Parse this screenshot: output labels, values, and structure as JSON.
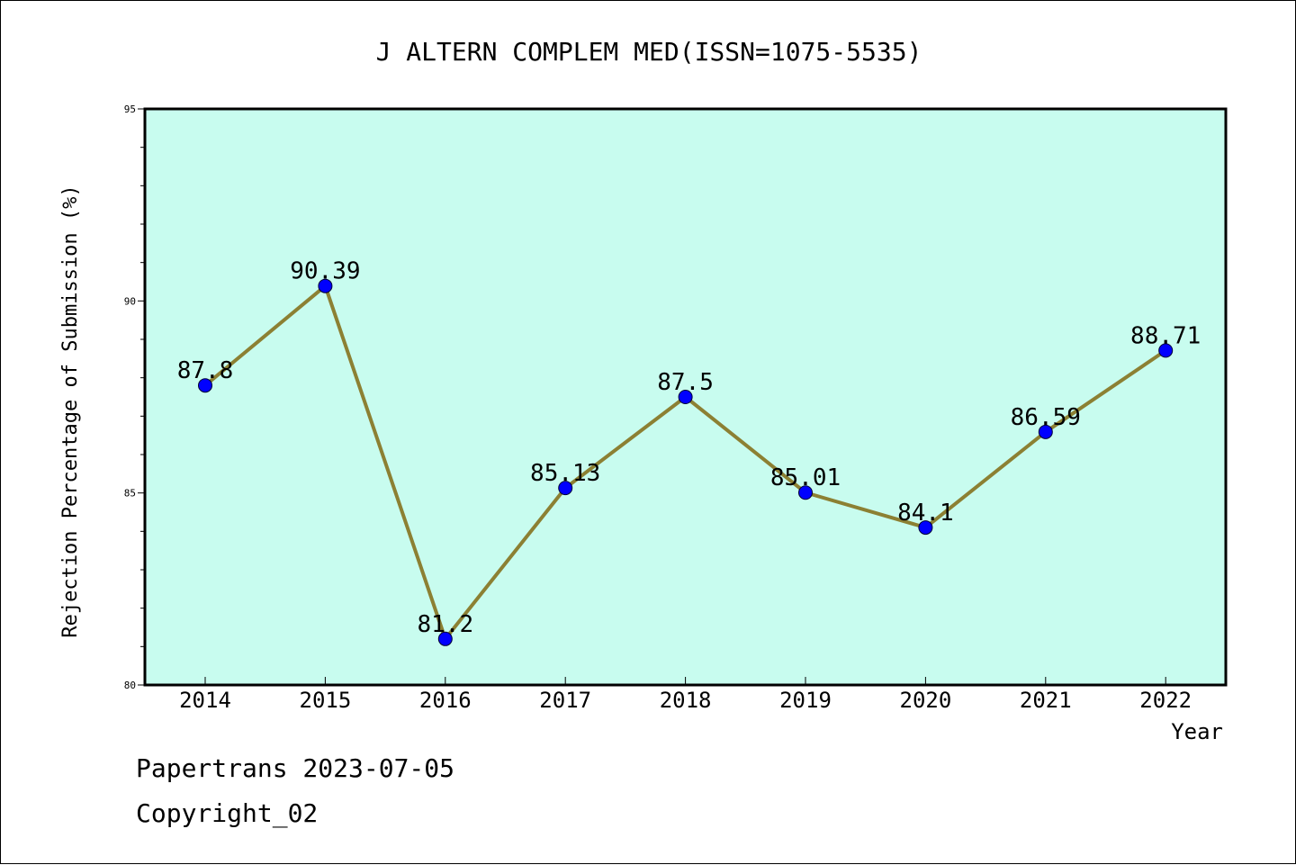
{
  "chart_data": {
    "type": "line",
    "title": "J ALTERN COMPLEM MED(ISSN=1075-5535)",
    "xlabel": "Year",
    "ylabel": "Rejection Percentage of Submission (%)",
    "categories": [
      "2014",
      "2015",
      "2016",
      "2017",
      "2018",
      "2019",
      "2020",
      "2021",
      "2022"
    ],
    "series": [
      {
        "values": [
          87.8,
          90.39,
          81.2,
          85.13,
          87.5,
          85.01,
          84.1,
          86.59,
          88.71
        ],
        "labels": [
          "87.8",
          "90.39",
          "81.2",
          "85.13",
          "87.5",
          "85.01",
          "84.1",
          "86.59",
          "88.71"
        ]
      }
    ],
    "ylim": [
      80,
      95
    ],
    "yticks": [
      "80",
      "85",
      "90",
      "95"
    ],
    "grid": false,
    "colors": {
      "plot_background": "#c8fcef",
      "line": "#8c8033",
      "marker": "#0000ff"
    }
  },
  "footer": {
    "line1": "Papertrans 2023-07-05",
    "line2": "Copyright_02"
  }
}
